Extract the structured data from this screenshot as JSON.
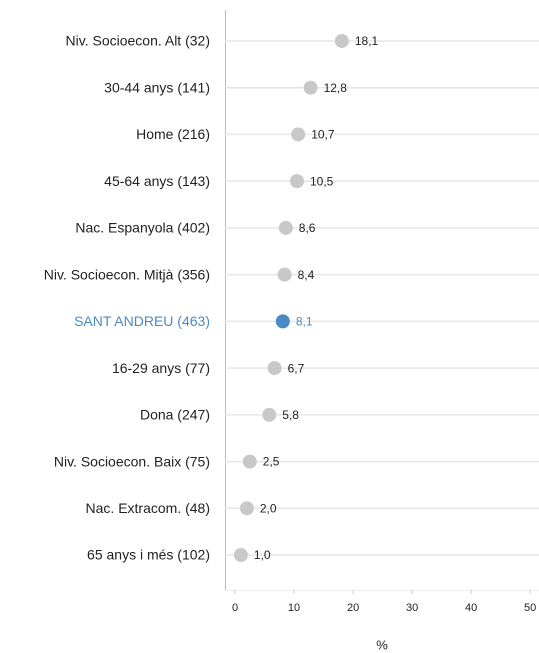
{
  "chart_data": {
    "type": "dot",
    "categories": [
      "Niv. Socioecon. Alt (32)",
      "30-44 anys (141)",
      "Home (216)",
      "45-64 anys (143)",
      "Nac. Espanyola (402)",
      "Niv. Socioecon. Mitjà (356)",
      "SANT ANDREU (463)",
      "16-29 anys (77)",
      "Dona (247)",
      "Niv. Socioecon. Baix (75)",
      "Nac. Extracom. (48)",
      "65 anys i més (102)"
    ],
    "values": [
      18.1,
      12.8,
      10.7,
      10.5,
      8.6,
      8.4,
      8.1,
      6.7,
      5.8,
      2.5,
      2.0,
      1.0
    ],
    "value_labels": [
      "18,1",
      "12,8",
      "10,7",
      "10,5",
      "8,6",
      "8,4",
      "8,1",
      "6,7",
      "5,8",
      "2,5",
      "2,0",
      "1,0"
    ],
    "colors": [
      "#c8c8c8",
      "#c8c8c8",
      "#c8c8c8",
      "#c8c8c8",
      "#c8c8c8",
      "#c8c8c8",
      "#4a8ac4",
      "#c8c8c8",
      "#c8c8c8",
      "#c8c8c8",
      "#c8c8c8",
      "#c8c8c8"
    ],
    "xlabel": "%",
    "xlim": [
      -1.7,
      51.5
    ],
    "xticks": [
      0,
      10,
      20,
      30,
      40,
      50
    ],
    "grid": true
  }
}
